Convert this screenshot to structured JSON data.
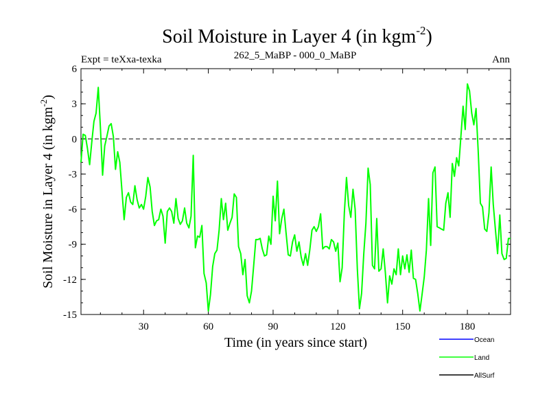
{
  "chart_data": {
    "type": "line",
    "title": "Soil Moisture in Layer 4 (in kgm",
    "title_sup": "-2",
    "title_close": ")",
    "subtitle_left": "Expt = teXxa-texka",
    "subtitle_center": "262_5_MaBP - 000_0_MaBP",
    "subtitle_right": "Ann",
    "xlabel": "Time (in years since start)",
    "ylabel": "Soil Moisture in Layer 4 (in kgm",
    "ylabel_sup": "-2",
    "ylabel_close": ")",
    "xlim": [
      1,
      200
    ],
    "ylim": [
      -15,
      6
    ],
    "xticks": [
      30,
      60,
      90,
      120,
      150,
      180
    ],
    "xtick_labels": [
      "30",
      "60",
      "90",
      "120",
      "150",
      "180"
    ],
    "yticks": [
      6,
      3,
      0,
      -3,
      -6,
      -9,
      -12,
      -15
    ],
    "ytick_labels": [
      "6",
      "3",
      "0",
      "-3",
      "-6",
      "-9",
      "-12",
      "-15"
    ],
    "zero_line": 0,
    "series": [
      {
        "name": "Ocean",
        "color": "#0000ff",
        "values": []
      },
      {
        "name": "Land",
        "color": "#00ff00",
        "values": [
          [
            1,
            -2.0
          ],
          [
            2,
            0.4
          ],
          [
            3,
            0.3
          ],
          [
            4,
            -0.8
          ],
          [
            5,
            -2.2
          ],
          [
            6,
            -0.3
          ],
          [
            7,
            1.5
          ],
          [
            8,
            2.2
          ],
          [
            9,
            4.4
          ],
          [
            10,
            1.0
          ],
          [
            11,
            -3.1
          ],
          [
            12,
            -0.6
          ],
          [
            13,
            0.2
          ],
          [
            14,
            1.1
          ],
          [
            15,
            1.3
          ],
          [
            16,
            0.2
          ],
          [
            17,
            -2.6
          ],
          [
            18,
            -1.1
          ],
          [
            19,
            -2.0
          ],
          [
            20,
            -4.5
          ],
          [
            21,
            -6.9
          ],
          [
            22,
            -5.0
          ],
          [
            23,
            -4.6
          ],
          [
            24,
            -5.4
          ],
          [
            25,
            -5.6
          ],
          [
            26,
            -4.0
          ],
          [
            27,
            -5.2
          ],
          [
            28,
            -5.9
          ],
          [
            29,
            -5.6
          ],
          [
            30,
            -6.0
          ],
          [
            31,
            -4.9
          ],
          [
            32,
            -3.3
          ],
          [
            33,
            -4.1
          ],
          [
            34,
            -6.2
          ],
          [
            35,
            -7.4
          ],
          [
            36,
            -7.0
          ],
          [
            37,
            -6.9
          ],
          [
            38,
            -6.0
          ],
          [
            39,
            -6.6
          ],
          [
            40,
            -8.9
          ],
          [
            41,
            -6.2
          ],
          [
            42,
            -5.9
          ],
          [
            43,
            -6.2
          ],
          [
            44,
            -7.2
          ],
          [
            45,
            -5.1
          ],
          [
            46,
            -6.8
          ],
          [
            47,
            -7.3
          ],
          [
            48,
            -7.0
          ],
          [
            49,
            -5.9
          ],
          [
            50,
            -7.2
          ],
          [
            51,
            -7.6
          ],
          [
            52,
            -6.6
          ],
          [
            53,
            -1.4
          ],
          [
            54,
            -9.3
          ],
          [
            55,
            -8.3
          ],
          [
            56,
            -8.4
          ],
          [
            57,
            -7.4
          ],
          [
            58,
            -11.5
          ],
          [
            59,
            -12.3
          ],
          [
            60,
            -14.7
          ],
          [
            61,
            -13.3
          ],
          [
            62,
            -10.9
          ],
          [
            63,
            -9.8
          ],
          [
            64,
            -9.5
          ],
          [
            65,
            -7.8
          ],
          [
            66,
            -5.1
          ],
          [
            67,
            -6.9
          ],
          [
            68,
            -5.5
          ],
          [
            69,
            -7.8
          ],
          [
            70,
            -7.2
          ],
          [
            71,
            -6.7
          ],
          [
            72,
            -4.7
          ],
          [
            73,
            -5.0
          ],
          [
            74,
            -9.2
          ],
          [
            75,
            -9.8
          ],
          [
            76,
            -11.6
          ],
          [
            77,
            -10.3
          ],
          [
            78,
            -13.4
          ],
          [
            79,
            -14.0
          ],
          [
            80,
            -13.0
          ],
          [
            81,
            -10.8
          ],
          [
            82,
            -8.6
          ],
          [
            83,
            -8.6
          ],
          [
            84,
            -8.5
          ],
          [
            85,
            -9.4
          ],
          [
            86,
            -10.0
          ],
          [
            87,
            -9.9
          ],
          [
            88,
            -8.3
          ],
          [
            89,
            -9.0
          ],
          [
            90,
            -4.9
          ],
          [
            91,
            -7.0
          ],
          [
            92,
            -3.6
          ],
          [
            93,
            -8.1
          ],
          [
            94,
            -6.8
          ],
          [
            95,
            -6.0
          ],
          [
            96,
            -8.0
          ],
          [
            97,
            -9.9
          ],
          [
            98,
            -10.0
          ],
          [
            99,
            -8.8
          ],
          [
            100,
            -8.2
          ],
          [
            101,
            -9.6
          ],
          [
            102,
            -8.8
          ],
          [
            103,
            -10.1
          ],
          [
            104,
            -10.8
          ],
          [
            105,
            -9.8
          ],
          [
            106,
            -10.8
          ],
          [
            107,
            -9.5
          ],
          [
            108,
            -7.8
          ],
          [
            109,
            -7.5
          ],
          [
            110,
            -7.9
          ],
          [
            111,
            -7.5
          ],
          [
            112,
            -6.4
          ],
          [
            113,
            -9.4
          ],
          [
            114,
            -9.2
          ],
          [
            115,
            -9.2
          ],
          [
            116,
            -9.4
          ],
          [
            117,
            -8.6
          ],
          [
            118,
            -8.8
          ],
          [
            119,
            -9.6
          ],
          [
            120,
            -8.9
          ],
          [
            121,
            -12.2
          ],
          [
            122,
            -11.0
          ],
          [
            123,
            -6.3
          ],
          [
            124,
            -3.3
          ],
          [
            125,
            -5.7
          ],
          [
            126,
            -6.7
          ],
          [
            127,
            -4.3
          ],
          [
            128,
            -6.0
          ],
          [
            129,
            -11.1
          ],
          [
            130,
            -14.5
          ],
          [
            131,
            -13.2
          ],
          [
            132,
            -9.8
          ],
          [
            133,
            -7.2
          ],
          [
            134,
            -2.5
          ],
          [
            135,
            -3.9
          ],
          [
            136,
            -10.8
          ],
          [
            137,
            -11.1
          ],
          [
            138,
            -6.8
          ],
          [
            139,
            -11.3
          ],
          [
            140,
            -11.1
          ],
          [
            141,
            -9.4
          ],
          [
            142,
            -11.4
          ],
          [
            143,
            -14.0
          ],
          [
            144,
            -11.7
          ],
          [
            145,
            -12.4
          ],
          [
            146,
            -11.1
          ],
          [
            147,
            -11.6
          ],
          [
            148,
            -9.4
          ],
          [
            149,
            -11.6
          ],
          [
            150,
            -10.0
          ],
          [
            151,
            -11.1
          ],
          [
            152,
            -9.9
          ],
          [
            153,
            -11.4
          ],
          [
            154,
            -9.5
          ],
          [
            155,
            -11.9
          ],
          [
            156,
            -12.0
          ],
          [
            157,
            -13.2
          ],
          [
            158,
            -14.7
          ],
          [
            159,
            -13.3
          ],
          [
            160,
            -11.8
          ],
          [
            161,
            -9.5
          ],
          [
            162,
            -5.1
          ],
          [
            163,
            -9.1
          ],
          [
            164,
            -2.9
          ],
          [
            165,
            -2.4
          ],
          [
            166,
            -7.5
          ],
          [
            167,
            -7.6
          ],
          [
            168,
            -7.7
          ],
          [
            169,
            -7.8
          ],
          [
            170,
            -5.5
          ],
          [
            171,
            -4.6
          ],
          [
            172,
            -6.7
          ],
          [
            173,
            -2.1
          ],
          [
            174,
            -3.2
          ],
          [
            175,
            -1.6
          ],
          [
            176,
            -2.3
          ],
          [
            177,
            0.2
          ],
          [
            178,
            2.8
          ],
          [
            179,
            0.8
          ],
          [
            180,
            4.7
          ],
          [
            181,
            4.1
          ],
          [
            182,
            2.2
          ],
          [
            183,
            1.2
          ],
          [
            184,
            2.6
          ],
          [
            185,
            -1.0
          ],
          [
            186,
            -5.5
          ],
          [
            187,
            -5.8
          ],
          [
            188,
            -7.7
          ],
          [
            189,
            -7.9
          ],
          [
            190,
            -6.3
          ],
          [
            191,
            -2.4
          ],
          [
            192,
            -5.6
          ],
          [
            193,
            -7.8
          ],
          [
            194,
            -9.8
          ],
          [
            195,
            -6.5
          ],
          [
            196,
            -9.8
          ],
          [
            197,
            -10.3
          ],
          [
            198,
            -10.2
          ],
          [
            199,
            -8.5
          ],
          [
            200,
            -8.5
          ]
        ]
      },
      {
        "name": "AllSurf",
        "color": "#000000",
        "values": []
      }
    ],
    "legend_position": "bottom-right"
  }
}
